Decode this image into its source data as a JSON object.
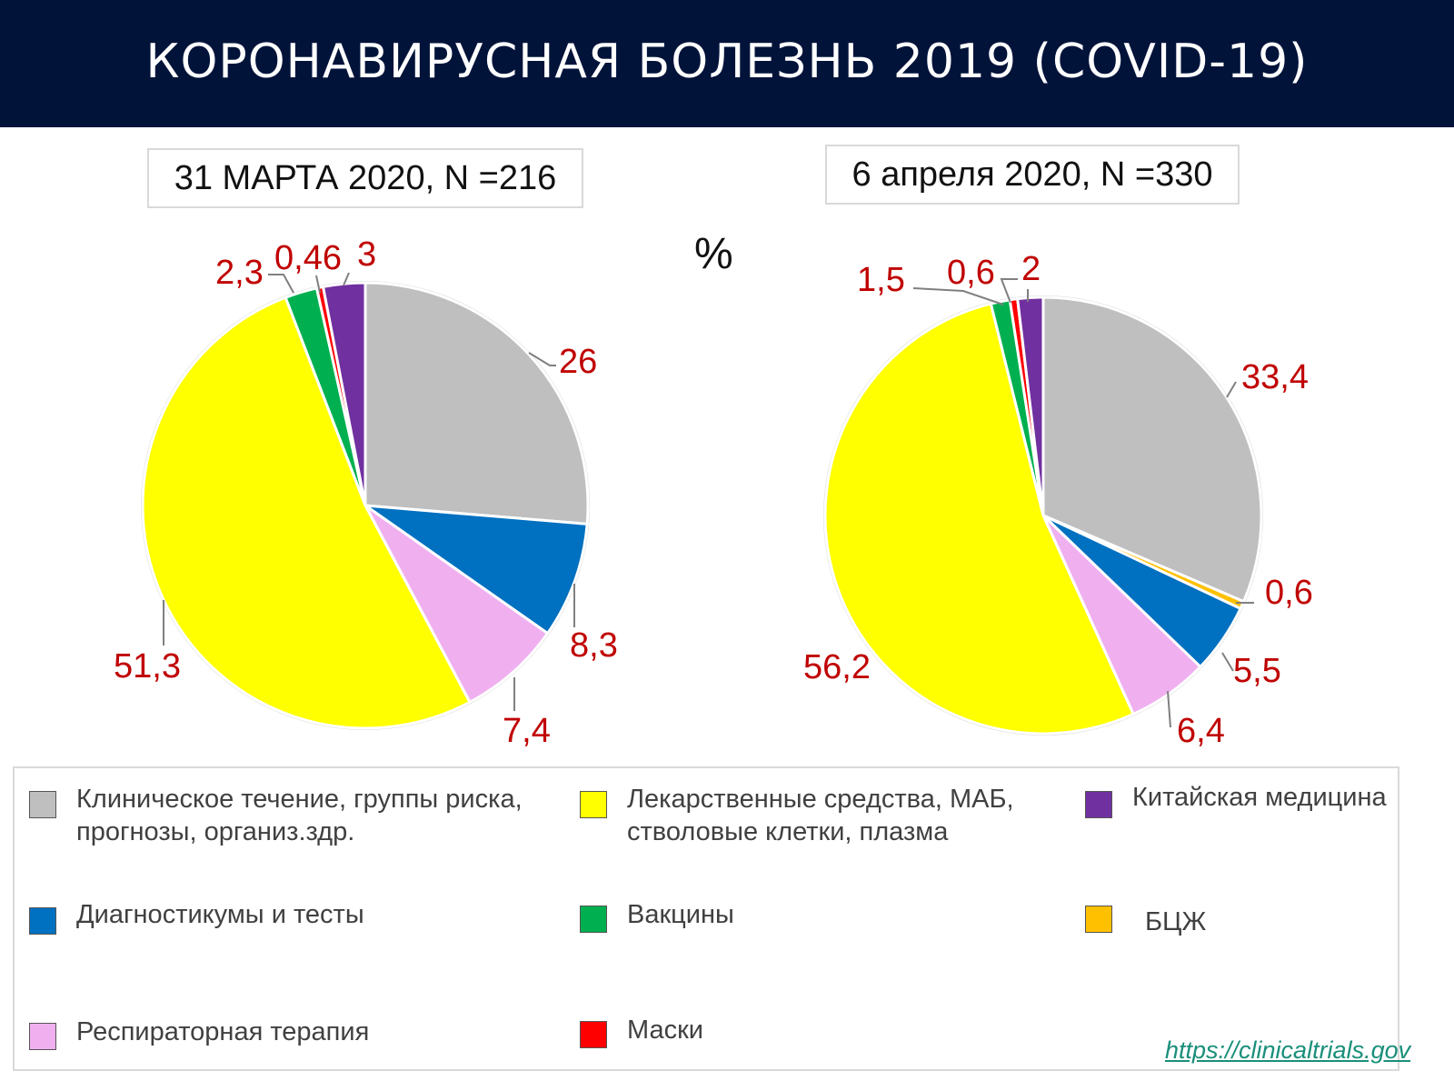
{
  "header": {
    "title": "КОРОНАВИРУСНАЯ БОЛЕЗНЬ  2019 (COVID-19)"
  },
  "unit_label": "%",
  "colors": {
    "clinical": "#bfbfbf",
    "diagnostics": "#0070c0",
    "respiratory": "#f0b0f0",
    "drugs": "#ffff00",
    "vaccines": "#00b050",
    "masks": "#ff0000",
    "chinese": "#7030a0",
    "bcg": "#ffc000",
    "label": "#c00000"
  },
  "chart_data": [
    {
      "type": "pie",
      "title": "31 МАРТА 2020, N =216",
      "slices": [
        {
          "key": "clinical",
          "value": 26,
          "label": "26"
        },
        {
          "key": "diagnostics",
          "value": 8.3,
          "label": "8,3"
        },
        {
          "key": "respiratory",
          "value": 7.4,
          "label": "7,4"
        },
        {
          "key": "drugs",
          "value": 51.3,
          "label": "51,3"
        },
        {
          "key": "vaccines",
          "value": 2.3,
          "label": "2,3"
        },
        {
          "key": "masks",
          "value": 0.46,
          "label": "0,46"
        },
        {
          "key": "chinese",
          "value": 3,
          "label": "3"
        }
      ]
    },
    {
      "type": "pie",
      "title": "6 апреля 2020, N =330",
      "slices": [
        {
          "key": "clinical",
          "value": 33.4,
          "label": "33,4"
        },
        {
          "key": "bcg",
          "value": 0.6,
          "label": "0,6"
        },
        {
          "key": "diagnostics",
          "value": 5.5,
          "label": "5,5"
        },
        {
          "key": "respiratory",
          "value": 6.4,
          "label": "6,4"
        },
        {
          "key": "drugs",
          "value": 56.2,
          "label": "56,2"
        },
        {
          "key": "vaccines",
          "value": 1.5,
          "label": "1,5"
        },
        {
          "key": "masks",
          "value": 0.6,
          "label": "0,6"
        },
        {
          "key": "chinese",
          "value": 2,
          "label": "2"
        }
      ]
    }
  ],
  "legend": [
    {
      "key": "clinical",
      "text": "Клиническое течение, группы риска,\nпрогнозы, организ.здр."
    },
    {
      "key": "drugs",
      "text": "Лекарственные средства, МАБ,\nстволовые клетки, плазма"
    },
    {
      "key": "chinese",
      "text": "Китайская медицина"
    },
    {
      "key": "diagnostics",
      "text": "Диагностикумы и тесты"
    },
    {
      "key": "vaccines",
      "text": "Вакцины"
    },
    {
      "key": "bcg",
      "text": "БЦЖ"
    },
    {
      "key": "respiratory",
      "text": "Респираторная терапия"
    },
    {
      "key": "masks",
      "text": "Маски"
    }
  ],
  "source": "https://clinicaltrials.gov"
}
